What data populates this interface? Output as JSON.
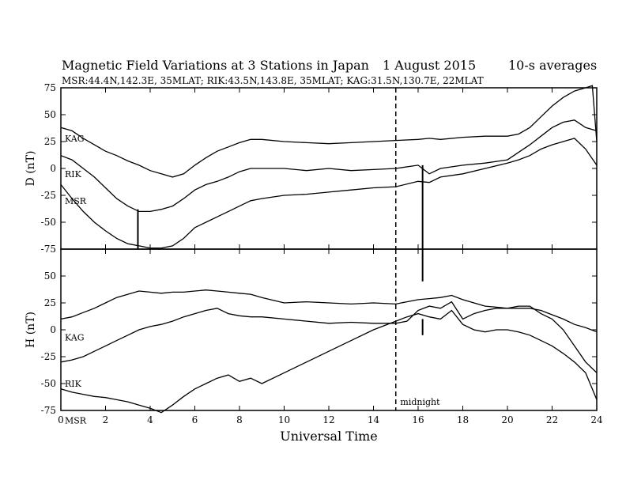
{
  "header": {
    "title": "Magnetic Field Variations at 3 Stations in Japan",
    "date": "1   August  2015",
    "averaging": "10-s averages",
    "stations": "MSR:44.4N,142.3E, 35MLAT;  RIK:43.5N,143.8E, 35MLAT;  KAG:31.5N,130.7E, 22MLAT"
  },
  "chart_data": [
    {
      "type": "line",
      "panel": "D",
      "ylabel": "D (nT)",
      "ylim": [
        -75,
        75
      ],
      "yticks": [
        75,
        50,
        25,
        0,
        -25,
        -50,
        -75
      ],
      "xlim": [
        0,
        24
      ],
      "xticks": [
        0,
        2,
        4,
        6,
        8,
        10,
        12,
        14,
        16,
        18,
        20,
        22,
        24
      ],
      "series": [
        {
          "name": "KAG",
          "x": [
            0,
            0.5,
            1,
            1.5,
            2,
            2.5,
            3,
            3.5,
            4,
            4.5,
            5,
            5.5,
            6,
            6.5,
            7,
            7.5,
            8,
            8.5,
            9,
            10,
            11,
            12,
            13,
            14,
            15,
            16,
            16.5,
            17,
            18,
            19,
            20,
            20.5,
            21,
            21.5,
            22,
            22.5,
            23,
            23.5,
            23.8,
            24
          ],
          "y": [
            38,
            35,
            28,
            22,
            16,
            12,
            7,
            3,
            -2,
            -5,
            -8,
            -5,
            3,
            10,
            16,
            20,
            24,
            27,
            27,
            25,
            24,
            23,
            24,
            25,
            26,
            27,
            28,
            27,
            29,
            30,
            30,
            32,
            38,
            48,
            58,
            66,
            72,
            75,
            77,
            25
          ]
        },
        {
          "name": "RIK",
          "x": [
            0,
            0.5,
            1,
            1.5,
            2,
            2.5,
            3,
            3.5,
            4,
            4.5,
            5,
            5.5,
            6,
            6.5,
            7,
            7.5,
            8,
            8.5,
            9,
            10,
            11,
            12,
            13,
            14,
            15,
            16,
            16.5,
            17,
            18,
            19,
            20,
            20.5,
            21,
            21.5,
            22,
            22.5,
            23,
            23.5,
            24
          ],
          "y": [
            12,
            8,
            0,
            -8,
            -18,
            -28,
            -35,
            -40,
            -40,
            -38,
            -35,
            -28,
            -20,
            -15,
            -12,
            -8,
            -3,
            0,
            0,
            0,
            -2,
            0,
            -2,
            -1,
            0,
            3,
            -5,
            0,
            3,
            5,
            8,
            15,
            22,
            30,
            38,
            43,
            45,
            38,
            35
          ]
        },
        {
          "name": "MSR",
          "x": [
            0,
            0.5,
            1,
            1.5,
            2,
            2.5,
            3,
            3.5,
            4,
            4.5,
            5,
            5.5,
            6,
            6.5,
            7,
            7.5,
            8,
            8.5,
            9,
            10,
            11,
            12,
            13,
            14,
            15,
            16,
            16.5,
            17,
            18,
            19,
            20,
            20.5,
            21,
            21.5,
            22,
            22.5,
            23,
            23.5,
            24
          ],
          "y": [
            -15,
            -28,
            -40,
            -50,
            -58,
            -65,
            -70,
            -72,
            -74,
            -74,
            -72,
            -65,
            -55,
            -50,
            -45,
            -40,
            -35,
            -30,
            -28,
            -25,
            -24,
            -22,
            -20,
            -18,
            -17,
            -12,
            -13,
            -8,
            -5,
            0,
            5,
            8,
            12,
            18,
            22,
            25,
            28,
            18,
            3
          ]
        }
      ],
      "vlines": [
        {
          "x": 3.45,
          "y": [
            -38,
            -75
          ]
        },
        {
          "x": 16.2,
          "y": [
            3,
            -105
          ]
        }
      ]
    },
    {
      "type": "line",
      "panel": "H",
      "ylabel": "H (nT)",
      "xlabel": "Universal Time",
      "ylim": [
        -75,
        75
      ],
      "yticks": [
        50,
        25,
        0,
        -25,
        -50,
        -75
      ],
      "xlim": [
        0,
        24
      ],
      "xticks": [
        0,
        2,
        4,
        6,
        8,
        10,
        12,
        14,
        16,
        18,
        20,
        22,
        24
      ],
      "series": [
        {
          "name": "KAG",
          "x": [
            0,
            0.5,
            1,
            1.5,
            2,
            2.5,
            3,
            3.5,
            4,
            4.5,
            5,
            5.5,
            6,
            6.5,
            7,
            7.5,
            8,
            8.5,
            9,
            10,
            11,
            12,
            13,
            14,
            15,
            15.5,
            16,
            16.5,
            17,
            17.5,
            18,
            18.5,
            19,
            19.5,
            20,
            20.5,
            21,
            21.5,
            22,
            22.5,
            23,
            23.5,
            24
          ],
          "y": [
            10,
            12,
            16,
            20,
            25,
            30,
            33,
            36,
            35,
            34,
            35,
            35,
            36,
            37,
            36,
            35,
            34,
            33,
            30,
            25,
            26,
            25,
            24,
            25,
            24,
            26,
            28,
            29,
            30,
            32,
            28,
            25,
            22,
            21,
            20,
            20,
            20,
            18,
            14,
            10,
            5,
            2,
            -2
          ]
        },
        {
          "name": "RIK",
          "x": [
            0,
            0.5,
            1,
            1.5,
            2,
            2.5,
            3,
            3.5,
            4,
            4.5,
            5,
            5.5,
            6,
            6.5,
            7,
            7.5,
            8,
            8.5,
            9,
            10,
            11,
            12,
            13,
            14,
            15,
            15.5,
            16,
            16.5,
            17,
            17.5,
            18,
            18.5,
            19,
            19.5,
            20,
            20.5,
            21,
            21.5,
            22,
            22.5,
            23,
            23.5,
            24
          ],
          "y": [
            -30,
            -28,
            -25,
            -20,
            -15,
            -10,
            -5,
            0,
            3,
            5,
            8,
            12,
            15,
            18,
            20,
            15,
            13,
            12,
            12,
            10,
            8,
            6,
            7,
            6,
            6,
            8,
            18,
            22,
            20,
            26,
            10,
            15,
            18,
            20,
            20,
            22,
            22,
            15,
            10,
            0,
            -15,
            -30,
            -40
          ]
        },
        {
          "name": "MSR",
          "x": [
            0,
            0.5,
            1,
            1.5,
            2,
            2.5,
            3,
            3.5,
            4,
            4.5,
            5,
            5.5,
            6,
            6.5,
            7,
            7.5,
            8,
            8.5,
            9,
            10,
            11,
            12,
            13,
            14,
            15,
            15.5,
            16,
            16.5,
            17,
            17.5,
            18,
            18.5,
            19,
            19.5,
            20,
            20.5,
            21,
            21.5,
            22,
            22.5,
            23,
            23.5,
            24
          ],
          "y": [
            -55,
            -58,
            -60,
            -62,
            -63,
            -65,
            -67,
            -70,
            -73,
            -77,
            -70,
            -62,
            -55,
            -50,
            -45,
            -42,
            -48,
            -45,
            -50,
            -40,
            -30,
            -20,
            -10,
            0,
            8,
            12,
            15,
            12,
            10,
            18,
            5,
            0,
            -2,
            0,
            0,
            -2,
            -5,
            -10,
            -15,
            -22,
            -30,
            -40,
            -65
          ]
        }
      ],
      "vlines": [
        {
          "x": 16.2,
          "y": [
            10,
            -5
          ]
        }
      ],
      "annotations": [
        {
          "text": "midnight",
          "x": 15.2,
          "y": -70
        }
      ]
    }
  ],
  "midline_x": 15
}
